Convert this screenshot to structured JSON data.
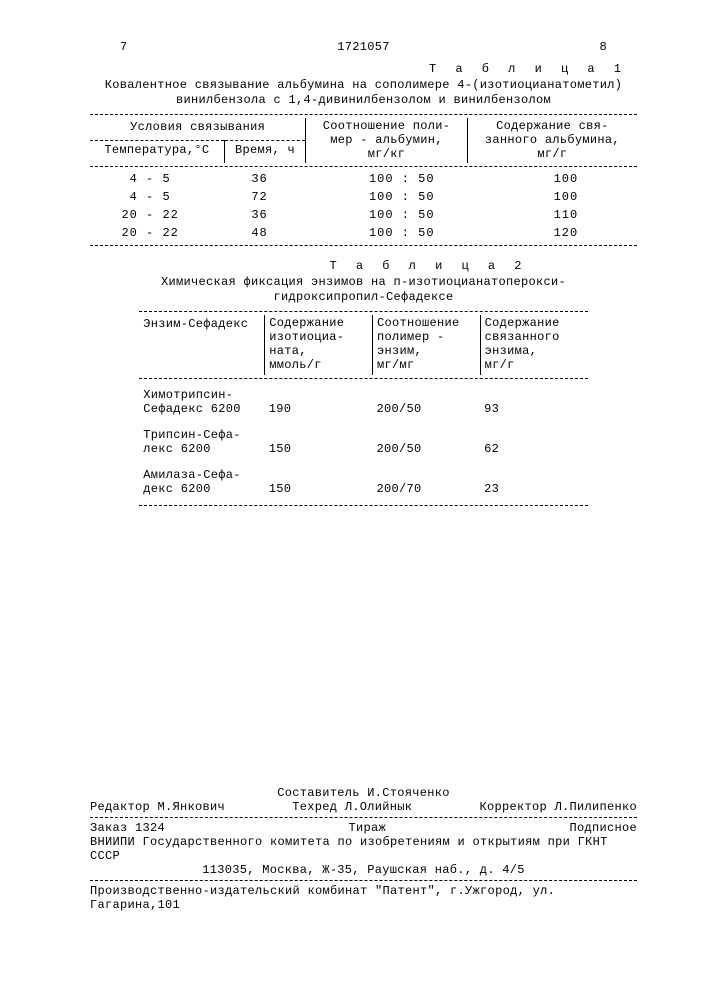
{
  "header": {
    "page_left": "7",
    "doc_number": "1721057",
    "page_right": "8"
  },
  "table1": {
    "label": "Т а б л и ц а 1",
    "caption_line1": "Ковалентное связывание альбумина на сополимере 4-(изотиоцианатометил)",
    "caption_line2": "винилбензола с 1,4-дивинилбензолом и винилбензолом",
    "head_group": "Условия связывания",
    "head_temp": "Температура,°С",
    "head_time": "Время, ч",
    "head_ratio": "Соотношение поли-\nмер - альбумин,\nмг/кг",
    "head_content": "Содержание свя-\nзанного альбумина,\nмг/г",
    "rows": [
      {
        "temp": "4 - 5",
        "time": "36",
        "ratio": "100 : 50",
        "content": "100"
      },
      {
        "temp": "4 - 5",
        "time": "72",
        "ratio": "100 : 50",
        "content": "100"
      },
      {
        "temp": "20 - 22",
        "time": "36",
        "ratio": "100 : 50",
        "content": "110"
      },
      {
        "temp": "20 - 22",
        "time": "48",
        "ratio": "100 : 50",
        "content": "120"
      }
    ]
  },
  "table2": {
    "label": "Т а б л и ц а 2",
    "caption_line1": "Химическая фиксация энзимов на п-изотиоцианатоперокси-",
    "caption_line2": "гидроксипропил-Сефадексе",
    "head_enzyme": "Энзим-Сефадекс",
    "head_iso": "Содержание\nизотиоциа-\nната,\nммоль/г",
    "head_ratio": "Соотношение\nполимер -\nэнзим,\nмг/мг",
    "head_content": "Содержание\nсвязанного\nэнзима,\nмг/г",
    "rows": [
      {
        "name": "Химотрипсин-\nСефадекс 6200",
        "iso": "190",
        "ratio": "200/50",
        "content": "93"
      },
      {
        "name": "Трипсин-Сефа-\nлекс 6200",
        "iso": "150",
        "ratio": "200/50",
        "content": "62"
      },
      {
        "name": "Амилаза-Сефа-\nдекс  6200",
        "iso": "150",
        "ratio": "200/70",
        "content": "23"
      }
    ]
  },
  "footer": {
    "compiler": "Составитель И.Стояченко",
    "editor": "Редактор М.Янкович",
    "techred": "Техред Л.Олийнык",
    "corrector": "Корректор Л.Пилипенко",
    "order": "Заказ 1324",
    "tirazh": "Тираж",
    "podpis": "Подписное",
    "org_line1": "ВНИИПИ Государственного комитета по изобретениям и открытиям при ГКНТ СССР",
    "org_line2": "113035, Москва, Ж-35, Раушская наб., д. 4/5",
    "prod": "Производственно-издательский комбинат \"Патент\", г.Ужгород, ул. Гагарина,101"
  }
}
